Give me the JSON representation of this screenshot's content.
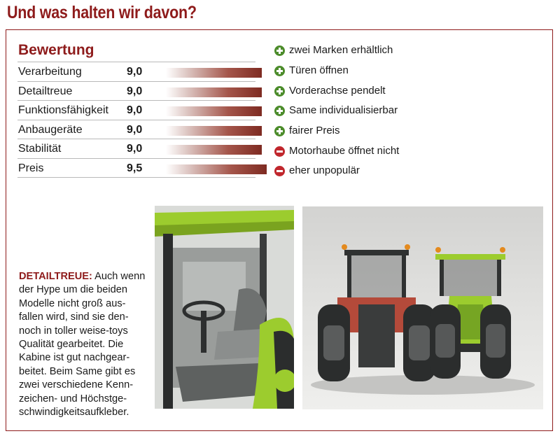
{
  "headline": "Und was halten wir davon?",
  "rating": {
    "title": "Bewertung",
    "max_score": 10,
    "rows": [
      {
        "label": "Verarbeitung",
        "value": "9,0",
        "score": 9.0
      },
      {
        "label": "Detailtreue",
        "value": "9,0",
        "score": 9.0
      },
      {
        "label": "Funktionsfähigkeit",
        "value": "9,0",
        "score": 9.0
      },
      {
        "label": "Anbaugeräte",
        "value": "9,0",
        "score": 9.0
      },
      {
        "label": "Stabilität",
        "value": "9,0",
        "score": 9.0
      },
      {
        "label": "Preis",
        "value": "9,5",
        "score": 9.5
      }
    ]
  },
  "pros_cons": [
    {
      "type": "plus",
      "icon": "plus-circle-icon",
      "text": "zwei Marken erhältlich"
    },
    {
      "type": "plus",
      "icon": "plus-circle-icon",
      "text": "Türen öffnen"
    },
    {
      "type": "plus",
      "icon": "plus-circle-icon",
      "text": "Vorderachse pendelt"
    },
    {
      "type": "plus",
      "icon": "plus-circle-icon",
      "text": "Same individualisierbar"
    },
    {
      "type": "plus",
      "icon": "plus-circle-icon",
      "text": "fairer Preis"
    },
    {
      "type": "minus",
      "icon": "minus-circle-icon",
      "text": "Motorhaube öffnet nicht"
    },
    {
      "type": "minus",
      "icon": "minus-circle-icon",
      "text": "eher unpopulär"
    }
  ],
  "caption": {
    "heading": "DETAILTREUE:",
    "first_line_rest": " Auch wenn",
    "lines": [
      "der Hype um die beiden",
      "Modelle nicht groß aus-",
      "fallen wird, sind sie den-",
      "noch in toller weise-toys",
      "Qualität gearbeitet. Die",
      "Kabine ist gut nachgear-",
      "beitet. Beim Same gibt es",
      "zwei verschiedene Kenn-",
      "zeichen- und Höchstge-",
      "schwindigkeitsaufkleber."
    ]
  },
  "colors": {
    "accent": "#8e1b1b",
    "plus": "#4c8c2b",
    "minus": "#c0272d",
    "tractor_green": "#9ccc2e"
  }
}
